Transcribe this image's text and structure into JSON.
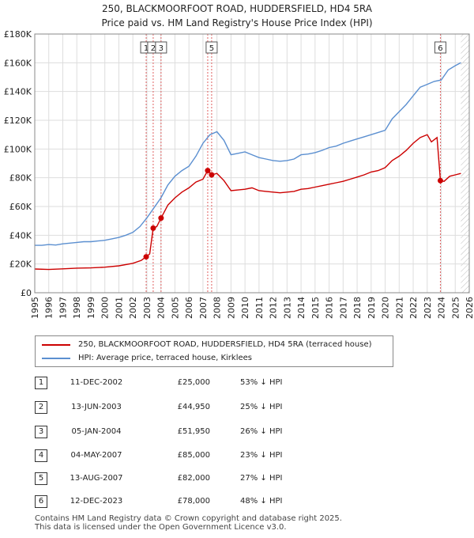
{
  "header": {
    "title": "250, BLACKMOORFOOT ROAD, HUDDERSFIELD, HD4 5RA",
    "subtitle": "Price paid vs. HM Land Registry's House Price Index (HPI)"
  },
  "colors": {
    "price_paid": "#cc0000",
    "hpi": "#5b8fd0",
    "marker_line": "#e06060",
    "grid": "#dddddd"
  },
  "chart_data": {
    "type": "line",
    "title": "250, BLACKMOORFOOT ROAD, HUDDERSFIELD, HD4 5RA",
    "subtitle": "Price paid vs. HM Land Registry's House Price Index (HPI)",
    "xlabel": "",
    "ylabel": "",
    "xlim": [
      1995,
      2026
    ],
    "ylim": [
      0,
      180000
    ],
    "grid": true,
    "y_ticks": [
      {
        "value": 0,
        "label": "£0"
      },
      {
        "value": 20000,
        "label": "£20K"
      },
      {
        "value": 40000,
        "label": "£40K"
      },
      {
        "value": 60000,
        "label": "£60K"
      },
      {
        "value": 80000,
        "label": "£80K"
      },
      {
        "value": 100000,
        "label": "£100K"
      },
      {
        "value": 120000,
        "label": "£120K"
      },
      {
        "value": 140000,
        "label": "£140K"
      },
      {
        "value": 160000,
        "label": "£160K"
      },
      {
        "value": 180000,
        "label": "£180K"
      }
    ],
    "x_ticks": [
      "1995",
      "1996",
      "1997",
      "1998",
      "1999",
      "2000",
      "2001",
      "2002",
      "2003",
      "2004",
      "2005",
      "2006",
      "2007",
      "2008",
      "2009",
      "2010",
      "2011",
      "2012",
      "2013",
      "2014",
      "2015",
      "2016",
      "2017",
      "2018",
      "2019",
      "2020",
      "2021",
      "2022",
      "2023",
      "2024",
      "2025",
      "2026"
    ],
    "hatched_after": 2025.4,
    "series": [
      {
        "name": "250, BLACKMOORFOOT ROAD, HUDDERSFIELD, HD4 5RA (terraced house)",
        "color": "#cc0000",
        "points": [
          [
            1995,
            16500
          ],
          [
            1996,
            16200
          ],
          [
            1997,
            16600
          ],
          [
            1998,
            17100
          ],
          [
            1999,
            17300
          ],
          [
            2000,
            17800
          ],
          [
            2001,
            18700
          ],
          [
            2002,
            20500
          ],
          [
            2002.6,
            22500
          ],
          [
            2002.95,
            25000
          ],
          [
            2003.2,
            27000
          ],
          [
            2003.45,
            44950
          ],
          [
            2003.7,
            46000
          ],
          [
            2004.01,
            51950
          ],
          [
            2004.5,
            61000
          ],
          [
            2005,
            66000
          ],
          [
            2005.5,
            70000
          ],
          [
            2006,
            73000
          ],
          [
            2006.5,
            77000
          ],
          [
            2007.0,
            79000
          ],
          [
            2007.34,
            85000
          ],
          [
            2007.62,
            82000
          ],
          [
            2008,
            83000
          ],
          [
            2008.5,
            78000
          ],
          [
            2009,
            71000
          ],
          [
            2009.5,
            71500
          ],
          [
            2010,
            72000
          ],
          [
            2010.5,
            73000
          ],
          [
            2011,
            71000
          ],
          [
            2011.5,
            70500
          ],
          [
            2012,
            70000
          ],
          [
            2012.5,
            69500
          ],
          [
            2013,
            70000
          ],
          [
            2013.5,
            70500
          ],
          [
            2014,
            72000
          ],
          [
            2014.5,
            72500
          ],
          [
            2015,
            73500
          ],
          [
            2015.5,
            74500
          ],
          [
            2016,
            75500
          ],
          [
            2016.5,
            76500
          ],
          [
            2017,
            77500
          ],
          [
            2017.5,
            79000
          ],
          [
            2018,
            80500
          ],
          [
            2018.5,
            82000
          ],
          [
            2019,
            84000
          ],
          [
            2019.5,
            85000
          ],
          [
            2020,
            87000
          ],
          [
            2020.5,
            92000
          ],
          [
            2021,
            95000
          ],
          [
            2021.5,
            99000
          ],
          [
            2022,
            104000
          ],
          [
            2022.5,
            108000
          ],
          [
            2023,
            110000
          ],
          [
            2023.3,
            105000
          ],
          [
            2023.7,
            108000
          ],
          [
            2023.94,
            78000
          ],
          [
            2024.2,
            77500
          ],
          [
            2024.6,
            81000
          ],
          [
            2025,
            82000
          ],
          [
            2025.4,
            83000
          ]
        ]
      },
      {
        "name": "HPI: Average price, terraced house, Kirklees",
        "color": "#5b8fd0",
        "points": [
          [
            1995,
            33000
          ],
          [
            1995.5,
            33000
          ],
          [
            1996,
            33500
          ],
          [
            1996.5,
            33200
          ],
          [
            1997,
            34000
          ],
          [
            1997.5,
            34500
          ],
          [
            1998,
            35000
          ],
          [
            1998.5,
            35500
          ],
          [
            1999,
            35500
          ],
          [
            1999.5,
            36000
          ],
          [
            2000,
            36500
          ],
          [
            2000.5,
            37500
          ],
          [
            2001,
            38500
          ],
          [
            2001.5,
            40000
          ],
          [
            2002,
            42000
          ],
          [
            2002.5,
            46000
          ],
          [
            2003,
            52000
          ],
          [
            2003.5,
            59000
          ],
          [
            2004,
            66000
          ],
          [
            2004.5,
            75000
          ],
          [
            2005,
            81000
          ],
          [
            2005.5,
            85000
          ],
          [
            2006,
            88000
          ],
          [
            2006.5,
            95000
          ],
          [
            2007,
            104000
          ],
          [
            2007.5,
            110000
          ],
          [
            2008,
            112000
          ],
          [
            2008.5,
            106000
          ],
          [
            2009,
            96000
          ],
          [
            2009.5,
            97000
          ],
          [
            2010,
            98000
          ],
          [
            2010.5,
            96000
          ],
          [
            2011,
            94000
          ],
          [
            2011.5,
            93000
          ],
          [
            2012,
            92000
          ],
          [
            2012.5,
            91500
          ],
          [
            2013,
            92000
          ],
          [
            2013.5,
            93000
          ],
          [
            2014,
            96000
          ],
          [
            2014.5,
            96500
          ],
          [
            2015,
            97500
          ],
          [
            2015.5,
            99000
          ],
          [
            2016,
            101000
          ],
          [
            2016.5,
            102000
          ],
          [
            2017,
            104000
          ],
          [
            2017.5,
            105500
          ],
          [
            2018,
            107000
          ],
          [
            2018.5,
            108500
          ],
          [
            2019,
            110000
          ],
          [
            2019.5,
            111500
          ],
          [
            2020,
            113000
          ],
          [
            2020.5,
            121000
          ],
          [
            2021,
            126000
          ],
          [
            2021.5,
            131000
          ],
          [
            2022,
            137000
          ],
          [
            2022.5,
            143000
          ],
          [
            2023,
            145000
          ],
          [
            2023.5,
            147000
          ],
          [
            2024,
            148000
          ],
          [
            2024.5,
            155000
          ],
          [
            2025,
            158000
          ],
          [
            2025.4,
            160000
          ]
        ]
      }
    ],
    "sales": [
      {
        "label": "1",
        "x": 2002.95,
        "price": 25000
      },
      {
        "label": "2",
        "x": 2003.45,
        "price": 44950
      },
      {
        "label": "3",
        "x": 2004.01,
        "price": 51950
      },
      {
        "label": "4",
        "x": 2007.34,
        "price": 85000
      },
      {
        "label": "5",
        "x": 2007.62,
        "price": 82000
      },
      {
        "label": "6",
        "x": 2023.94,
        "price": 78000
      }
    ],
    "marker_boxes": [
      {
        "text": "1",
        "x": 2002.95
      },
      {
        "text": "2",
        "x": 2003.45
      },
      {
        "text": "3",
        "x": 2004.01
      },
      {
        "text": "5",
        "x": 2007.62
      },
      {
        "text": "6",
        "x": 2023.94
      }
    ]
  },
  "legend": {
    "price_paid_label": "250, BLACKMOORFOOT ROAD, HUDDERSFIELD, HD4 5RA (terraced house)",
    "hpi_label": "HPI: Average price, terraced house, Kirklees"
  },
  "transactions": [
    {
      "num": "1",
      "date": "11-DEC-2002",
      "price": "£25,000",
      "hpi": "53% ↓ HPI"
    },
    {
      "num": "2",
      "date": "13-JUN-2003",
      "price": "£44,950",
      "hpi": "25% ↓ HPI"
    },
    {
      "num": "3",
      "date": "05-JAN-2004",
      "price": "£51,950",
      "hpi": "26% ↓ HPI"
    },
    {
      "num": "4",
      "date": "04-MAY-2007",
      "price": "£85,000",
      "hpi": "23% ↓ HPI"
    },
    {
      "num": "5",
      "date": "13-AUG-2007",
      "price": "£82,000",
      "hpi": "27% ↓ HPI"
    },
    {
      "num": "6",
      "date": "12-DEC-2023",
      "price": "£78,000",
      "hpi": "48% ↓ HPI"
    }
  ],
  "footer": {
    "line1": "Contains HM Land Registry data © Crown copyright and database right 2025.",
    "line2": "This data is licensed under the Open Government Licence v3.0."
  }
}
